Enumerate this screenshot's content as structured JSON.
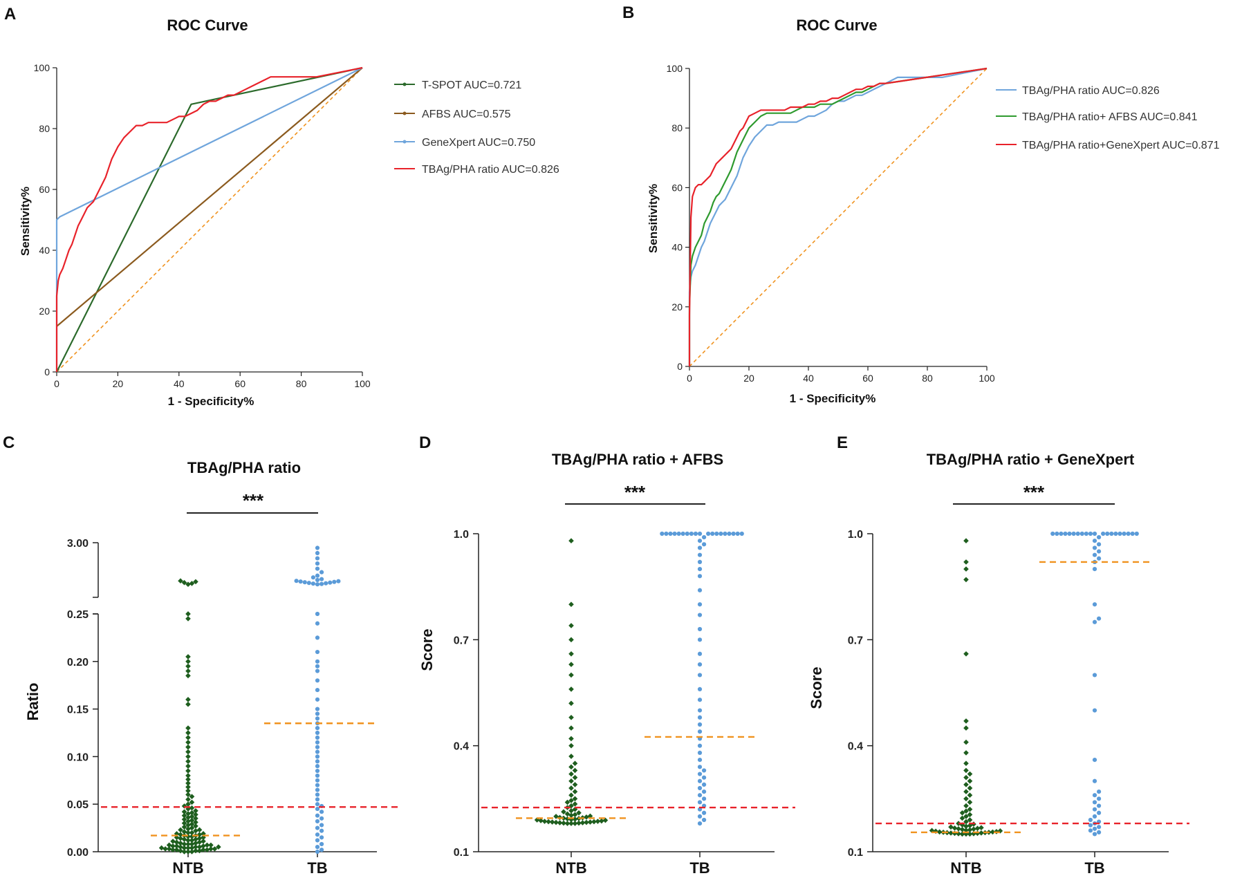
{
  "colors": {
    "green": "#2b6a2b",
    "brown": "#8b5a1e",
    "blue": "#6fa5dc",
    "red": "#e8222a",
    "orange": "#f0921e",
    "ntb": "#1e5e1e",
    "tb": "#5b9bd8",
    "axis": "#222222"
  },
  "chart_data": [
    {
      "panel": "A",
      "type": "line",
      "title": "ROC Curve",
      "xlabel": "1 - Specificity%",
      "ylabel": "Sensitivity%",
      "xlim": [
        0,
        100
      ],
      "ylim": [
        0,
        100
      ],
      "xticks": [
        0,
        20,
        40,
        60,
        80,
        100
      ],
      "yticks": [
        0,
        20,
        40,
        60,
        80,
        100
      ],
      "reference_line": [
        [
          0,
          0
        ],
        [
          100,
          100
        ]
      ],
      "series": [
        {
          "name": "T-SPOT AUC=0.721",
          "color": "#2b6a2b",
          "x": [
            0,
            44,
            100
          ],
          "y": [
            0,
            88,
            100
          ]
        },
        {
          "name": "AFBS AUC=0.575",
          "color": "#8b5a1e",
          "x": [
            0,
            100
          ],
          "y": [
            15,
            100
          ]
        },
        {
          "name": "GeneXpert AUC=0.750",
          "color": "#6fa5dc",
          "x": [
            0,
            0,
            1,
            100
          ],
          "y": [
            0,
            50,
            51,
            100
          ]
        },
        {
          "name": "TBAg/PHA ratio AUC=0.826",
          "color": "#e8222a",
          "x": [
            0,
            0,
            0.5,
            1,
            2,
            3,
            4,
            5,
            6,
            7,
            8,
            9,
            10,
            11,
            12,
            13,
            14,
            15,
            16,
            17,
            18,
            19,
            20,
            22,
            24,
            26,
            28,
            30,
            32,
            34,
            36,
            38,
            40,
            42,
            44,
            46,
            48,
            50,
            52,
            54,
            56,
            58,
            60,
            62,
            64,
            66,
            68,
            70,
            72,
            76,
            80,
            85,
            90,
            95,
            100
          ],
          "y": [
            0,
            25,
            30,
            32,
            34,
            37,
            40,
            42,
            45,
            48,
            50,
            52,
            54,
            55,
            56,
            58,
            60,
            62,
            64,
            67,
            70,
            72,
            74,
            77,
            79,
            81,
            81,
            82,
            82,
            82,
            82,
            83,
            84,
            84,
            85,
            86,
            88,
            89,
            89,
            90,
            91,
            91,
            92,
            93,
            94,
            95,
            96,
            97,
            97,
            97,
            97,
            97,
            98,
            99,
            100
          ]
        }
      ]
    },
    {
      "panel": "B",
      "type": "line",
      "title": "ROC Curve",
      "xlabel": "1 - Specificity%",
      "ylabel": "Sensitivity%",
      "xlim": [
        0,
        100
      ],
      "ylim": [
        0,
        100
      ],
      "xticks": [
        0,
        20,
        40,
        60,
        80,
        100
      ],
      "yticks": [
        0,
        20,
        40,
        60,
        80,
        100
      ],
      "reference_line": [
        [
          0,
          0
        ],
        [
          100,
          100
        ]
      ],
      "series": [
        {
          "name": "TBAg/PHA ratio AUC=0.826",
          "color": "#6fa5dc",
          "x": [
            0,
            0,
            0.5,
            1,
            2,
            3,
            4,
            5,
            6,
            7,
            8,
            9,
            10,
            11,
            12,
            13,
            14,
            15,
            16,
            17,
            18,
            19,
            20,
            22,
            24,
            26,
            28,
            30,
            32,
            34,
            36,
            38,
            40,
            42,
            44,
            46,
            48,
            50,
            52,
            54,
            56,
            58,
            60,
            62,
            64,
            66,
            68,
            70,
            72,
            76,
            80,
            85,
            90,
            95,
            100
          ],
          "y": [
            0,
            25,
            30,
            32,
            34,
            37,
            40,
            42,
            45,
            48,
            50,
            52,
            54,
            55,
            56,
            58,
            60,
            62,
            64,
            67,
            70,
            72,
            74,
            77,
            79,
            81,
            81,
            82,
            82,
            82,
            82,
            83,
            84,
            84,
            85,
            86,
            88,
            89,
            89,
            90,
            91,
            91,
            92,
            93,
            94,
            95,
            96,
            97,
            97,
            97,
            97,
            97,
            98,
            99,
            100
          ]
        },
        {
          "name": "TBAg/PHA ratio+ AFBS AUC=0.841",
          "color": "#2e9a2e",
          "x": [
            0,
            0,
            0.5,
            1,
            2,
            3,
            4,
            5,
            6,
            7,
            8,
            9,
            10,
            11,
            12,
            13,
            14,
            15,
            16,
            17,
            18,
            19,
            20,
            22,
            24,
            26,
            28,
            30,
            32,
            34,
            36,
            38,
            40,
            42,
            44,
            46,
            48,
            50,
            52,
            54,
            56,
            58,
            60,
            62,
            64,
            66,
            100
          ],
          "y": [
            0,
            20,
            34,
            37,
            40,
            42,
            44,
            48,
            50,
            52,
            55,
            57,
            58,
            60,
            62,
            64,
            66,
            69,
            72,
            74,
            76,
            78,
            80,
            82,
            84,
            85,
            85,
            85,
            85,
            85,
            86,
            87,
            87,
            87,
            88,
            88,
            88,
            89,
            90,
            91,
            92,
            92,
            93,
            94,
            95,
            95,
            100
          ]
        },
        {
          "name": "TBAg/PHA ratio+GeneXpert AUC=0.871",
          "color": "#e8222a",
          "x": [
            0,
            0,
            0.5,
            1,
            2,
            3,
            4,
            5,
            6,
            7,
            8,
            9,
            10,
            11,
            12,
            13,
            14,
            15,
            16,
            17,
            18,
            19,
            20,
            22,
            24,
            26,
            28,
            30,
            32,
            34,
            36,
            38,
            40,
            42,
            44,
            46,
            48,
            50,
            52,
            54,
            56,
            58,
            60,
            62,
            64,
            66,
            100
          ],
          "y": [
            0,
            17,
            50,
            57,
            60,
            61,
            61,
            62,
            63,
            64,
            66,
            68,
            69,
            70,
            71,
            72,
            73,
            75,
            77,
            79,
            80,
            82,
            84,
            85,
            86,
            86,
            86,
            86,
            86,
            87,
            87,
            87,
            88,
            88,
            89,
            89,
            90,
            90,
            91,
            92,
            93,
            93,
            94,
            94,
            95,
            95,
            100
          ]
        }
      ]
    },
    {
      "panel": "C",
      "type": "scatter",
      "title": "TBAg/PHA ratio",
      "ylabel": "Ratio",
      "categories": [
        "NTB",
        "TB"
      ],
      "yticks_lower": [
        "0.00",
        "0.05",
        "0.10",
        "0.15",
        "0.20",
        "0.25"
      ],
      "yticks_upper": [
        "3.00"
      ],
      "axis_break": [
        0.25,
        3.0
      ],
      "ylim_lower": [
        0,
        0.25
      ],
      "significance": "***",
      "cutoff": 0.047,
      "medians": [
        0.017,
        0.135
      ],
      "points": [
        {
          "group": "NTB",
          "values": [
            0.0,
            0.0,
            0.0,
            0.001,
            0.001,
            0.001,
            0.002,
            0.002,
            0.002,
            0.002,
            0.003,
            0.003,
            0.003,
            0.003,
            0.004,
            0.004,
            0.004,
            0.004,
            0.005,
            0.005,
            0.005,
            0.005,
            0.006,
            0.006,
            0.006,
            0.007,
            0.007,
            0.007,
            0.008,
            0.008,
            0.008,
            0.009,
            0.009,
            0.01,
            0.01,
            0.011,
            0.011,
            0.012,
            0.012,
            0.013,
            0.013,
            0.014,
            0.014,
            0.015,
            0.015,
            0.016,
            0.016,
            0.017,
            0.017,
            0.018,
            0.018,
            0.019,
            0.019,
            0.02,
            0.02,
            0.021,
            0.022,
            0.023,
            0.023,
            0.024,
            0.025,
            0.026,
            0.027,
            0.028,
            0.029,
            0.03,
            0.031,
            0.032,
            0.033,
            0.034,
            0.035,
            0.036,
            0.037,
            0.038,
            0.039,
            0.04,
            0.041,
            0.042,
            0.043,
            0.045,
            0.046,
            0.048,
            0.05,
            0.052,
            0.055,
            0.058,
            0.06,
            0.064,
            0.068,
            0.072,
            0.076,
            0.08,
            0.085,
            0.09,
            0.095,
            0.1,
            0.105,
            0.11,
            0.115,
            0.12,
            0.125,
            0.13,
            0.155,
            0.16,
            0.185,
            0.19,
            0.195,
            0.2,
            0.205,
            0.245,
            0.25,
            0.8,
            0.85,
            0.9,
            0.95,
            1.0
          ]
        },
        {
          "group": "TB",
          "values": [
            0.0,
            0.002,
            0.005,
            0.008,
            0.012,
            0.015,
            0.018,
            0.022,
            0.025,
            0.028,
            0.032,
            0.035,
            0.038,
            0.042,
            0.045,
            0.048,
            0.05,
            0.055,
            0.06,
            0.065,
            0.07,
            0.075,
            0.08,
            0.085,
            0.09,
            0.095,
            0.1,
            0.105,
            0.11,
            0.115,
            0.12,
            0.125,
            0.13,
            0.135,
            0.14,
            0.145,
            0.15,
            0.16,
            0.17,
            0.18,
            0.19,
            0.195,
            0.2,
            0.21,
            0.225,
            0.24,
            0.25,
            0.8,
            0.82,
            0.84,
            0.86,
            0.88,
            0.9,
            0.92,
            0.94,
            0.96,
            0.98,
            1.0,
            1.05,
            1.1,
            1.2,
            1.3,
            1.5,
            1.7,
            2.0,
            2.3,
            2.6,
            2.9
          ]
        }
      ]
    },
    {
      "panel": "D",
      "type": "scatter",
      "title": "TBAg/PHA ratio + AFBS",
      "ylabel": "Score",
      "categories": [
        "NTB",
        "TB"
      ],
      "yticks": [
        "0.1",
        "0.4",
        "0.7",
        "1.0"
      ],
      "ylim": [
        0.1,
        1.0
      ],
      "significance": "***",
      "cutoff": 0.225,
      "medians": [
        0.195,
        0.425
      ],
      "points": [
        {
          "group": "NTB",
          "values": [
            0.18,
            0.18,
            0.18,
            0.181,
            0.181,
            0.182,
            0.182,
            0.183,
            0.183,
            0.184,
            0.184,
            0.185,
            0.185,
            0.186,
            0.186,
            0.187,
            0.188,
            0.189,
            0.19,
            0.191,
            0.192,
            0.193,
            0.194,
            0.195,
            0.196,
            0.197,
            0.198,
            0.2,
            0.201,
            0.203,
            0.205,
            0.207,
            0.21,
            0.213,
            0.216,
            0.22,
            0.225,
            0.23,
            0.235,
            0.24,
            0.245,
            0.25,
            0.26,
            0.27,
            0.28,
            0.29,
            0.3,
            0.31,
            0.32,
            0.33,
            0.34,
            0.35,
            0.37,
            0.4,
            0.42,
            0.45,
            0.48,
            0.52,
            0.56,
            0.6,
            0.63,
            0.66,
            0.7,
            0.74,
            0.8,
            0.98
          ]
        },
        {
          "group": "TB",
          "values": [
            0.18,
            0.19,
            0.2,
            0.21,
            0.22,
            0.23,
            0.24,
            0.25,
            0.26,
            0.27,
            0.28,
            0.29,
            0.3,
            0.31,
            0.32,
            0.33,
            0.34,
            0.36,
            0.38,
            0.4,
            0.42,
            0.44,
            0.46,
            0.48,
            0.5,
            0.53,
            0.56,
            0.6,
            0.63,
            0.66,
            0.7,
            0.73,
            0.77,
            0.8,
            0.84,
            0.88,
            0.9,
            0.92,
            0.94,
            0.96,
            0.97,
            0.98,
            0.99,
            1.0,
            1.0,
            1.0,
            1.0,
            1.0,
            1.0,
            1.0,
            1.0,
            1.0,
            1.0,
            1.0,
            1.0,
            1.0,
            1.0,
            1.0,
            1.0,
            1.0,
            1.0,
            1.0
          ]
        }
      ]
    },
    {
      "panel": "E",
      "type": "scatter",
      "title": "TBAg/PHA ratio + GeneXpert",
      "ylabel": "Score",
      "categories": [
        "NTB",
        "TB"
      ],
      "yticks": [
        "0.1",
        "0.4",
        "0.7",
        "1.0"
      ],
      "ylim": [
        0.1,
        1.0
      ],
      "significance": "***",
      "cutoff": 0.18,
      "medians": [
        0.155,
        0.92
      ],
      "points": [
        {
          "group": "NTB",
          "values": [
            0.15,
            0.15,
            0.15,
            0.151,
            0.151,
            0.152,
            0.152,
            0.153,
            0.153,
            0.154,
            0.154,
            0.155,
            0.155,
            0.156,
            0.156,
            0.157,
            0.158,
            0.159,
            0.16,
            0.161,
            0.162,
            0.163,
            0.164,
            0.165,
            0.166,
            0.167,
            0.168,
            0.17,
            0.172,
            0.174,
            0.176,
            0.178,
            0.18,
            0.185,
            0.19,
            0.195,
            0.2,
            0.205,
            0.21,
            0.215,
            0.22,
            0.23,
            0.24,
            0.25,
            0.26,
            0.27,
            0.28,
            0.29,
            0.3,
            0.31,
            0.32,
            0.33,
            0.35,
            0.38,
            0.41,
            0.45,
            0.47,
            0.66,
            0.87,
            0.9,
            0.92,
            0.98
          ]
        },
        {
          "group": "TB",
          "values": [
            0.15,
            0.155,
            0.16,
            0.165,
            0.17,
            0.175,
            0.18,
            0.185,
            0.19,
            0.2,
            0.21,
            0.22,
            0.23,
            0.24,
            0.25,
            0.26,
            0.27,
            0.3,
            0.36,
            0.5,
            0.6,
            0.75,
            0.76,
            0.8,
            0.9,
            0.92,
            0.93,
            0.94,
            0.95,
            0.96,
            0.97,
            0.98,
            0.99,
            1.0,
            1.0,
            1.0,
            1.0,
            1.0,
            1.0,
            1.0,
            1.0,
            1.0,
            1.0,
            1.0,
            1.0,
            1.0,
            1.0,
            1.0,
            1.0,
            1.0,
            1.0,
            1.0,
            1.0
          ]
        }
      ]
    }
  ]
}
